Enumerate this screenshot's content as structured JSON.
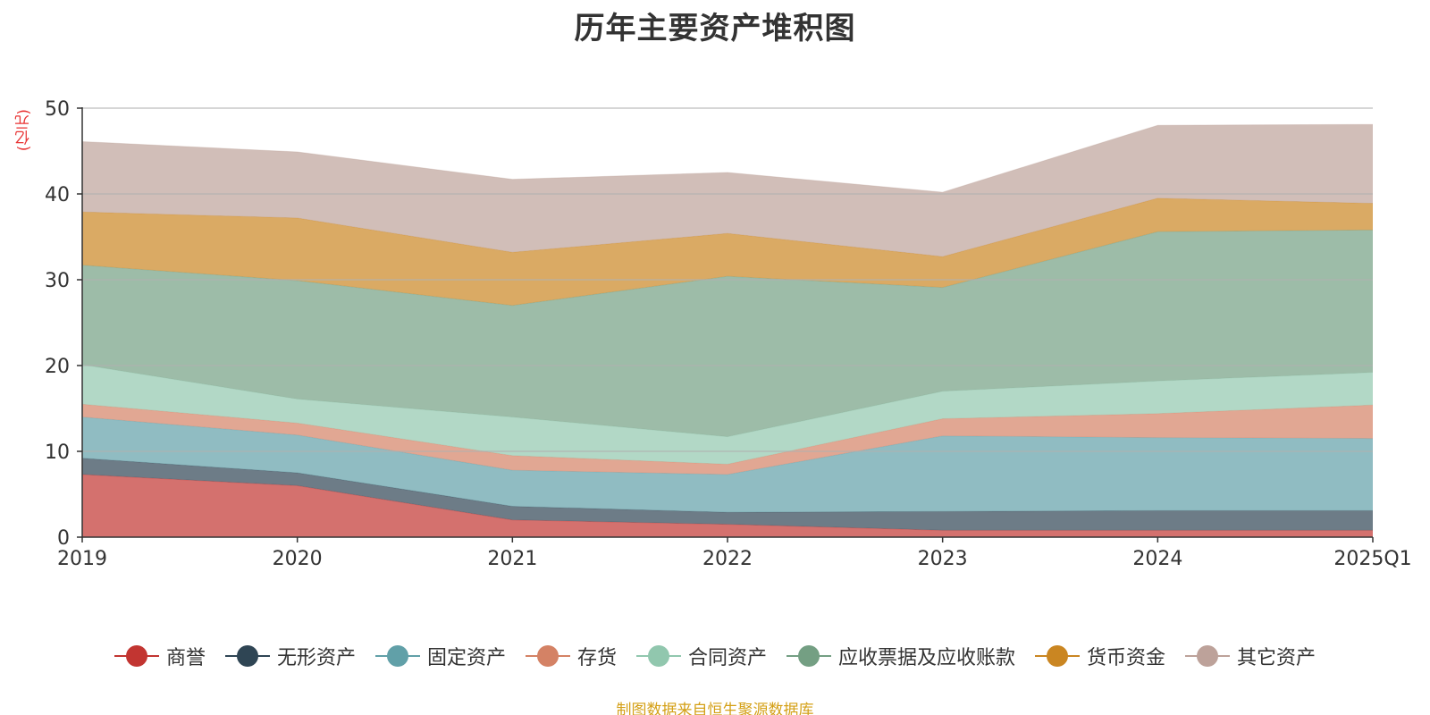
{
  "title": "历年主要资产堆积图",
  "unit": "(亿元)",
  "source_note": "制图数据来自恒生聚源数据库",
  "chart_data": {
    "type": "area",
    "stacked": true,
    "title": "历年主要资产堆积图",
    "ylabel": "(亿元)",
    "ylim": [
      0,
      50
    ],
    "y_ticks": [
      0,
      10,
      20,
      30,
      40,
      50
    ],
    "grid": true,
    "legend_position": "bottom",
    "categories": [
      "2019",
      "2020",
      "2021",
      "2022",
      "2023",
      "2024",
      "2025Q1"
    ],
    "series": [
      {
        "name": "商誉",
        "color": "#c23531",
        "values": [
          7.3,
          6.0,
          2.0,
          1.5,
          0.8,
          0.8,
          0.8
        ]
      },
      {
        "name": "无形资产",
        "color": "#2f4554",
        "values": [
          1.9,
          1.5,
          1.6,
          1.4,
          2.2,
          2.3,
          2.3
        ]
      },
      {
        "name": "固定资产",
        "color": "#61a0a8",
        "values": [
          4.8,
          4.4,
          4.2,
          4.4,
          8.8,
          8.5,
          8.4
        ]
      },
      {
        "name": "存货",
        "color": "#d48265",
        "values": [
          1.5,
          1.4,
          1.7,
          1.2,
          2.0,
          2.8,
          3.9
        ]
      },
      {
        "name": "合同资产",
        "color": "#91c7ae",
        "values": [
          4.6,
          2.8,
          4.5,
          3.2,
          3.2,
          3.8,
          3.8
        ]
      },
      {
        "name": "应收票据及应收账款",
        "color": "#749f83",
        "values": [
          11.6,
          13.8,
          13.0,
          18.7,
          12.1,
          17.4,
          16.6
        ]
      },
      {
        "name": "货币资金",
        "color": "#ca8622",
        "values": [
          6.2,
          7.3,
          6.2,
          5.0,
          3.6,
          3.9,
          3.1
        ]
      },
      {
        "name": "其它资产",
        "color": "#bda29a",
        "values": [
          8.2,
          7.7,
          8.5,
          7.1,
          7.5,
          8.5,
          9.2
        ]
      }
    ]
  }
}
